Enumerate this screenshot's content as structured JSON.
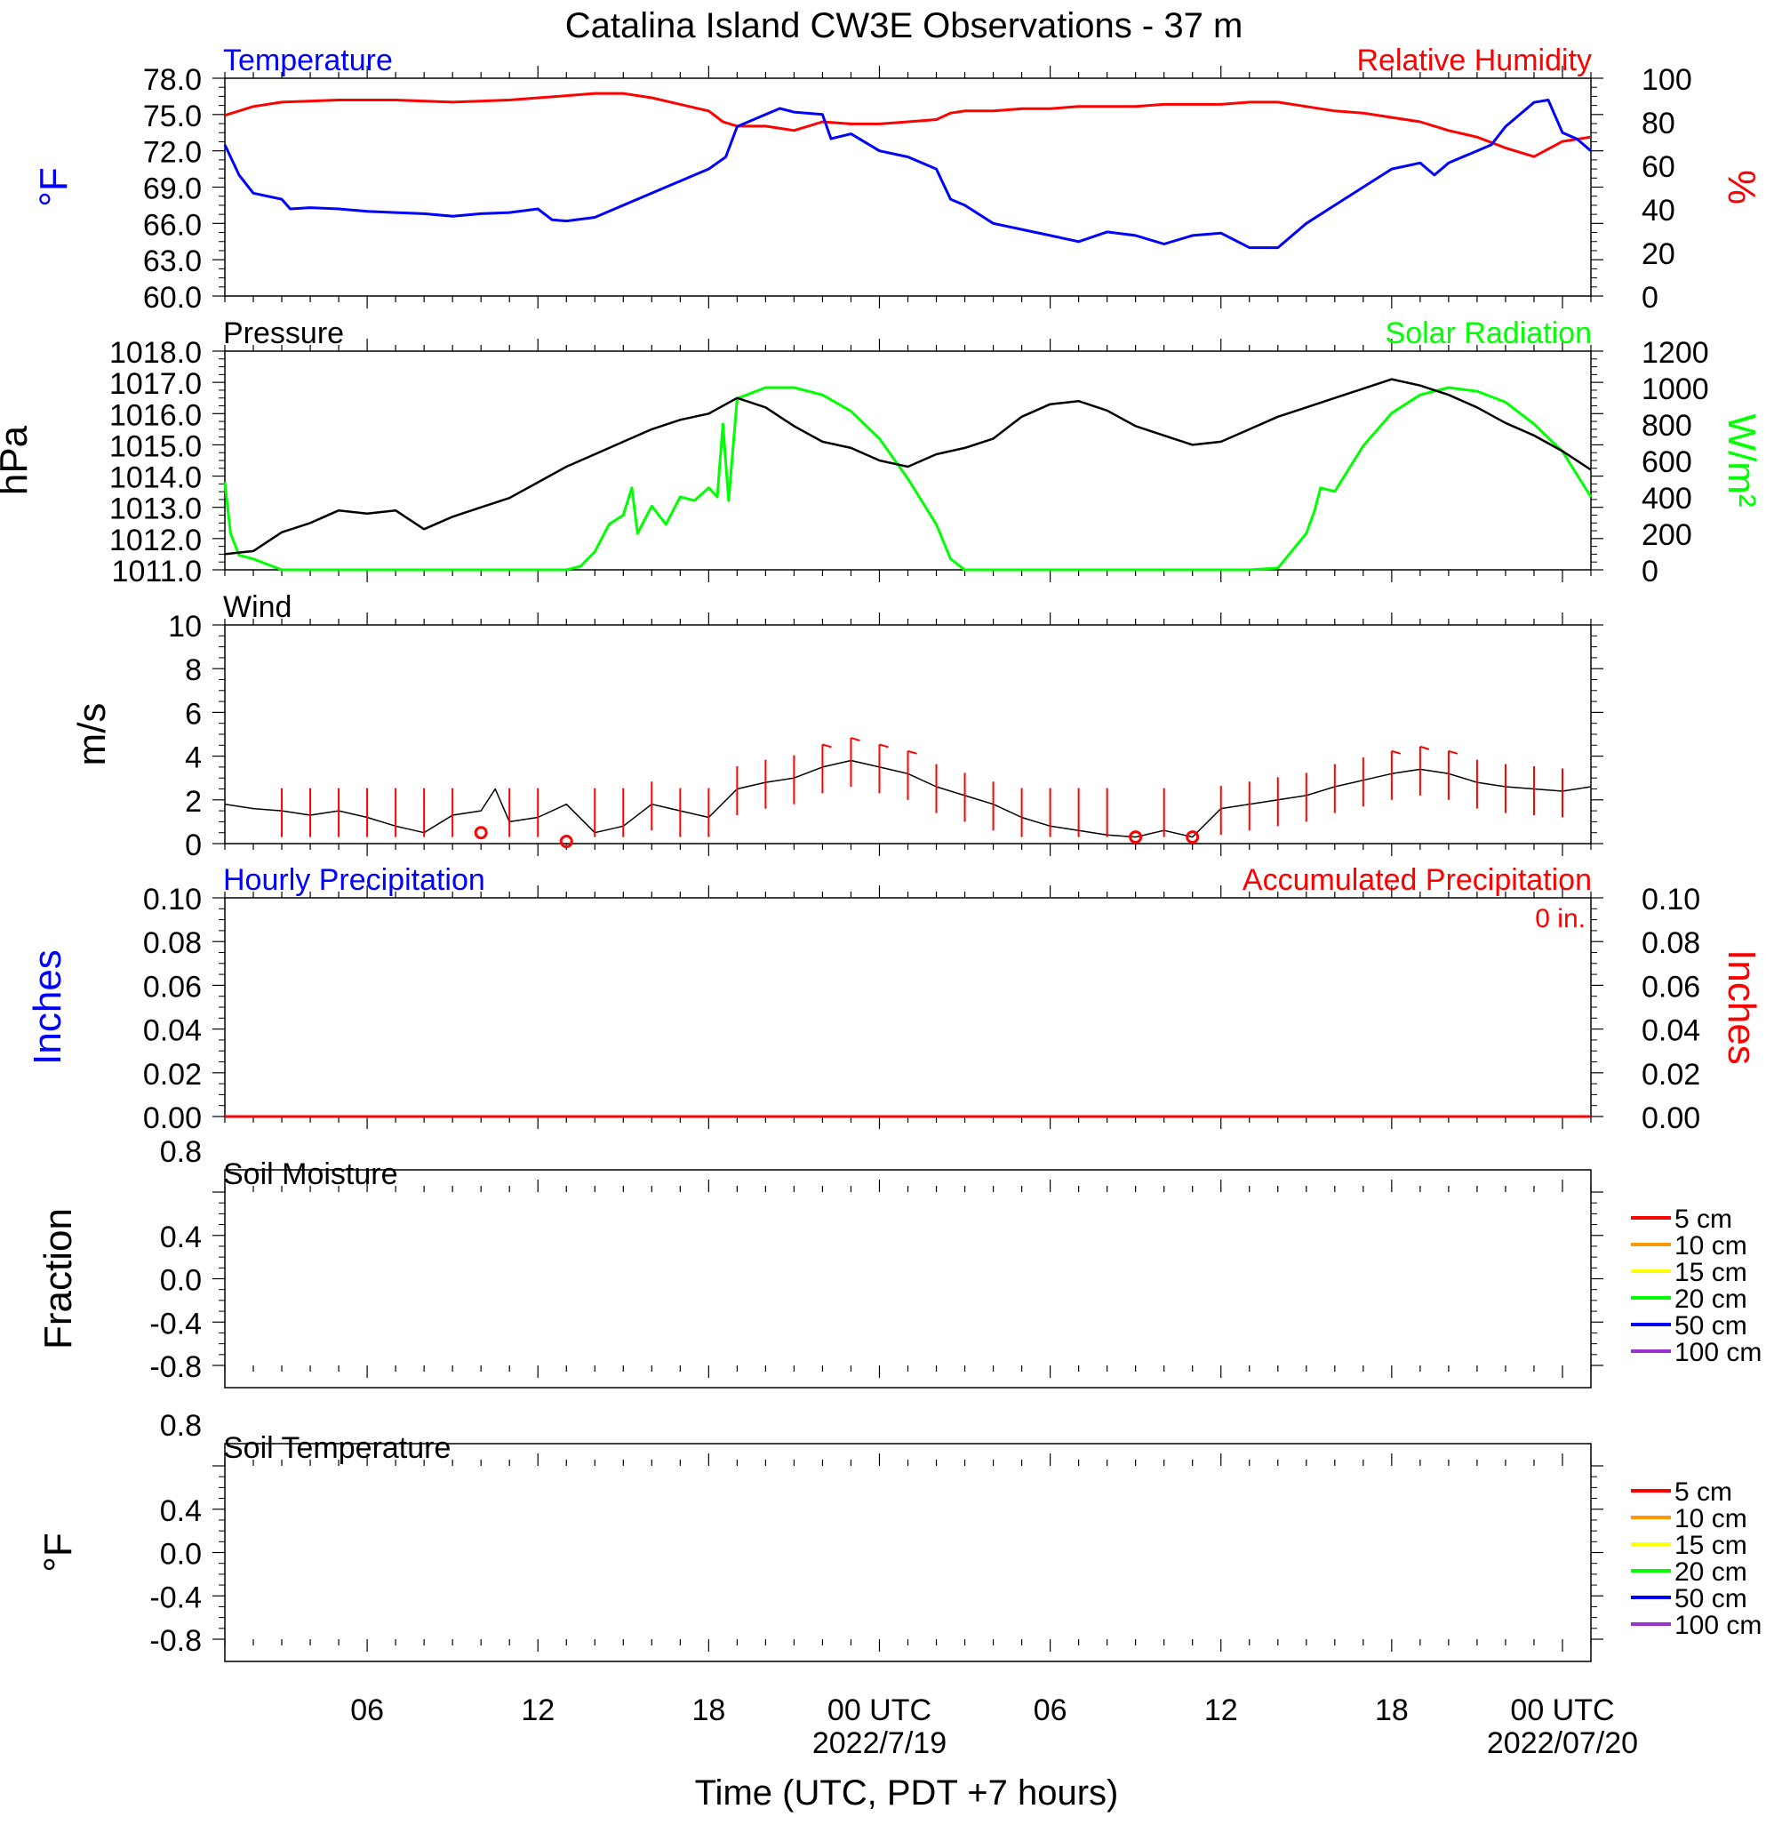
{
  "title": "Catalina Island CW3E Observations - 37 m",
  "colors": {
    "temperature": "#0000ff",
    "humidity": "#ff0000",
    "pressure": "#000000",
    "solar": "#00ff00",
    "wind": "#000000",
    "barb": "#ff0000",
    "hourly_precip": "#0000ff",
    "accum_precip": "#ff0000",
    "soil_levels": [
      "#ff0000",
      "#ff9900",
      "#ffff00",
      "#00ff00",
      "#0000ff",
      "#9933cc"
    ]
  },
  "x_axis": {
    "label": "Time (UTC, PDT +7 hours)",
    "range_hours": [
      0,
      48
    ],
    "ticks": [
      {
        "h": 5,
        "label": "06"
      },
      {
        "h": 11,
        "label": "12"
      },
      {
        "h": 17,
        "label": "18"
      },
      {
        "h": 23,
        "label": "00 UTC",
        "label2": "2022/7/19"
      },
      {
        "h": 29,
        "label": "06"
      },
      {
        "h": 35,
        "label": "12"
      },
      {
        "h": 41,
        "label": "18"
      },
      {
        "h": 47,
        "label": "00 UTC",
        "label2": "2022/07/20"
      }
    ]
  },
  "panels": {
    "temp_rh": {
      "left_title": "Temperature",
      "right_title": "Relative Humidity",
      "left_unit": "°F",
      "right_unit": "%",
      "left_ticks": [
        "78.0",
        "75.0",
        "72.0",
        "69.0",
        "66.0",
        "63.0",
        "60.0"
      ],
      "right_ticks": [
        "100",
        "80",
        "60",
        "40",
        "20",
        "0"
      ]
    },
    "pressure_solar": {
      "left_title": "Pressure",
      "right_title": "Solar Radiation",
      "left_unit": "hPa",
      "right_unit": "W/m²",
      "left_ticks": [
        "1018.0",
        "1017.0",
        "1016.0",
        "1015.0",
        "1014.0",
        "1013.0",
        "1012.0",
        "1011.0"
      ],
      "right_ticks": [
        "1200",
        "1000",
        "800",
        "600",
        "400",
        "200",
        "0"
      ]
    },
    "wind": {
      "left_title": "Wind",
      "left_unit": "m/s",
      "left_ticks": [
        "10",
        "8",
        "6",
        "4",
        "2",
        "0"
      ]
    },
    "precip": {
      "left_title": "Hourly Precipitation",
      "right_title": "Accumulated Precipitation",
      "left_unit": "Inches",
      "right_unit": "Inches",
      "total_label": "0 in.",
      "left_ticks": [
        "0.10",
        "0.08",
        "0.06",
        "0.04",
        "0.02",
        "0.00"
      ],
      "right_ticks": [
        "0.10",
        "0.08",
        "0.06",
        "0.04",
        "0.02",
        "0.00"
      ]
    },
    "soil_moisture": {
      "left_title": "Soil Moisture",
      "left_unit": "Fraction",
      "left_ticks": [
        "0.8",
        "0.4",
        "0.0",
        "-0.4",
        "-0.8"
      ],
      "legend": [
        "5 cm",
        "10 cm",
        "15 cm",
        "20 cm",
        "50 cm",
        "100 cm"
      ]
    },
    "soil_temp": {
      "left_title": "Soil Temperature",
      "left_unit": "°F",
      "left_ticks": [
        "0.8",
        "0.4",
        "0.0",
        "-0.4",
        "-0.8"
      ],
      "legend": [
        "5 cm",
        "10 cm",
        "15 cm",
        "20 cm",
        "50 cm",
        "100 cm"
      ]
    }
  },
  "chart_data": [
    {
      "type": "line",
      "title": "Temperature / Relative Humidity",
      "x_unit": "hours since 2022-07-18 01 UTC",
      "ylim_left": [
        60,
        78
      ],
      "ylim_right": [
        0,
        100
      ],
      "series": [
        {
          "name": "Temperature",
          "axis": "left",
          "x": [
            0,
            0.5,
            1,
            2,
            2.3,
            3,
            4,
            5,
            6,
            7,
            8,
            9,
            10,
            11,
            11.5,
            12,
            13,
            14,
            15,
            16,
            16.5,
            17,
            17.3,
            17.6,
            18,
            19,
            19.5,
            20,
            21,
            21.3,
            22,
            23,
            24,
            25,
            25.5,
            26,
            27,
            28,
            29,
            30,
            31,
            32,
            33,
            34,
            35,
            36,
            37,
            38,
            39,
            40,
            41,
            42,
            42.5,
            43,
            44,
            44.5,
            45,
            46,
            46.5,
            47,
            47.5,
            48
          ],
          "y": [
            72.5,
            70,
            68.5,
            68,
            67.2,
            67.3,
            67.2,
            67,
            66.9,
            66.8,
            66.6,
            66.8,
            66.9,
            67.2,
            66.3,
            66.2,
            66.5,
            67.5,
            68.5,
            69.5,
            70,
            70.5,
            71,
            71.5,
            74,
            75,
            75.5,
            75.2,
            75,
            73,
            73.4,
            72,
            71.5,
            70.5,
            68,
            67.5,
            66,
            65.5,
            65,
            64.5,
            65.3,
            65,
            64.3,
            65,
            65.2,
            64,
            64,
            66,
            67.5,
            69,
            70.5,
            71,
            70,
            71,
            72,
            72.5,
            74,
            76,
            76.2,
            73.5,
            73,
            72
          ]
        },
        {
          "name": "Relative Humidity",
          "axis": "right",
          "x": [
            0,
            1,
            2,
            4,
            6,
            8,
            10,
            12,
            13,
            14,
            15,
            16,
            17,
            17.5,
            18,
            19,
            20,
            21,
            22,
            23,
            24,
            25,
            25.5,
            26,
            27,
            28,
            29,
            30,
            31,
            32,
            33,
            34,
            35,
            36,
            37,
            38,
            39,
            40,
            41,
            42,
            43,
            44,
            45,
            46,
            47,
            48
          ],
          "y": [
            83,
            87,
            89,
            90,
            90,
            89,
            90,
            92,
            93,
            93,
            91,
            88,
            85,
            80,
            78,
            78,
            76,
            80,
            79,
            79,
            80,
            81,
            84,
            85,
            85,
            86,
            86,
            87,
            87,
            87,
            88,
            88,
            88,
            89,
            89,
            87,
            85,
            84,
            82,
            80,
            76,
            73,
            68,
            64,
            71,
            73
          ]
        }
      ]
    },
    {
      "type": "line",
      "title": "Pressure / Solar Radiation",
      "x_unit": "hours since 2022-07-18 01 UTC",
      "ylim_left": [
        1011,
        1018
      ],
      "ylim_right": [
        0,
        1200
      ],
      "series": [
        {
          "name": "Pressure",
          "axis": "left",
          "x": [
            0,
            1,
            2,
            3,
            4,
            5,
            6,
            7,
            8,
            9,
            10,
            11,
            12,
            13,
            14,
            15,
            16,
            17,
            18,
            19,
            20,
            21,
            22,
            23,
            24,
            25,
            26,
            27,
            28,
            29,
            30,
            31,
            32,
            33,
            34,
            35,
            36,
            37,
            38,
            39,
            40,
            41,
            42,
            43,
            44,
            45,
            46,
            47,
            48
          ],
          "y": [
            1011.5,
            1011.6,
            1012.2,
            1012.5,
            1012.9,
            1012.8,
            1012.9,
            1012.3,
            1012.7,
            1013.0,
            1013.3,
            1013.8,
            1014.3,
            1014.7,
            1015.1,
            1015.5,
            1015.8,
            1016.0,
            1016.5,
            1016.2,
            1015.6,
            1015.1,
            1014.9,
            1014.5,
            1014.3,
            1014.7,
            1014.9,
            1015.2,
            1015.9,
            1016.3,
            1016.4,
            1016.1,
            1015.6,
            1015.3,
            1015.0,
            1015.1,
            1015.5,
            1015.9,
            1016.2,
            1016.5,
            1016.8,
            1017.1,
            1016.9,
            1016.6,
            1016.2,
            1015.7,
            1015.3,
            1014.8,
            1014.2
          ]
        },
        {
          "name": "Solar Radiation",
          "axis": "right",
          "x": [
            0,
            0.2,
            0.5,
            1,
            1.5,
            2,
            12,
            12.5,
            13,
            13.5,
            14,
            14.3,
            14.5,
            15,
            15.5,
            16,
            16.5,
            17,
            17.3,
            17.5,
            17.7,
            18,
            19,
            20,
            21,
            22,
            23,
            24,
            25,
            25.5,
            26,
            30,
            34,
            35,
            36,
            37,
            38,
            38.3,
            38.5,
            39,
            40,
            41,
            42,
            43,
            44,
            45,
            46,
            47,
            48
          ],
          "y": [
            480,
            200,
            80,
            60,
            30,
            0,
            0,
            20,
            100,
            250,
            300,
            450,
            200,
            350,
            250,
            400,
            380,
            450,
            400,
            800,
            380,
            940,
            1000,
            1000,
            960,
            870,
            720,
            500,
            250,
            60,
            0,
            0,
            0,
            0,
            0,
            10,
            200,
            330,
            450,
            430,
            680,
            860,
            960,
            1000,
            980,
            920,
            800,
            650,
            400
          ]
        }
      ]
    },
    {
      "type": "line",
      "title": "Wind",
      "x_unit": "hours since 2022-07-18 01 UTC",
      "ylim": [
        0,
        10
      ],
      "series": [
        {
          "name": "Wind speed",
          "x": [
            0,
            1,
            2,
            3,
            4,
            5,
            6,
            7,
            8,
            9,
            9.5,
            10,
            11,
            12,
            13,
            14,
            15,
            16,
            17,
            18,
            19,
            20,
            21,
            22,
            23,
            24,
            25,
            26,
            27,
            28,
            29,
            30,
            31,
            32,
            33,
            34,
            35,
            36,
            37,
            38,
            39,
            40,
            41,
            42,
            43,
            44,
            45,
            46,
            47,
            48
          ],
          "y": [
            1.8,
            1.6,
            1.5,
            1.3,
            1.5,
            1.2,
            0.8,
            0.5,
            1.3,
            1.5,
            2.5,
            1.0,
            1.2,
            1.8,
            0.5,
            0.8,
            1.8,
            1.5,
            1.2,
            2.5,
            2.8,
            3.0,
            3.5,
            3.8,
            3.5,
            3.2,
            2.6,
            2.2,
            1.8,
            1.2,
            0.8,
            0.6,
            0.4,
            0.3,
            0.6,
            0.3,
            1.6,
            1.8,
            2.0,
            2.2,
            2.6,
            2.9,
            3.2,
            3.4,
            3.2,
            2.8,
            2.6,
            2.5,
            2.4,
            2.6
          ]
        },
        {
          "name": "Calm barbs",
          "x": [
            9,
            12,
            32,
            34
          ],
          "y": [
            0.5,
            0.1,
            0.3,
            0.3
          ]
        }
      ]
    },
    {
      "type": "line",
      "title": "Hourly / Accumulated Precipitation",
      "ylim": [
        0,
        0.1
      ],
      "series": [
        {
          "name": "Hourly Precipitation",
          "x": [
            0,
            48
          ],
          "y": [
            0,
            0
          ]
        },
        {
          "name": "Accumulated Precipitation",
          "x": [
            0,
            48
          ],
          "y": [
            0,
            0
          ]
        }
      ]
    },
    {
      "type": "line",
      "title": "Soil Moisture",
      "ylim": [
        -1,
        1
      ],
      "series": []
    },
    {
      "type": "line",
      "title": "Soil Temperature",
      "ylim": [
        -1,
        1
      ],
      "series": []
    }
  ]
}
